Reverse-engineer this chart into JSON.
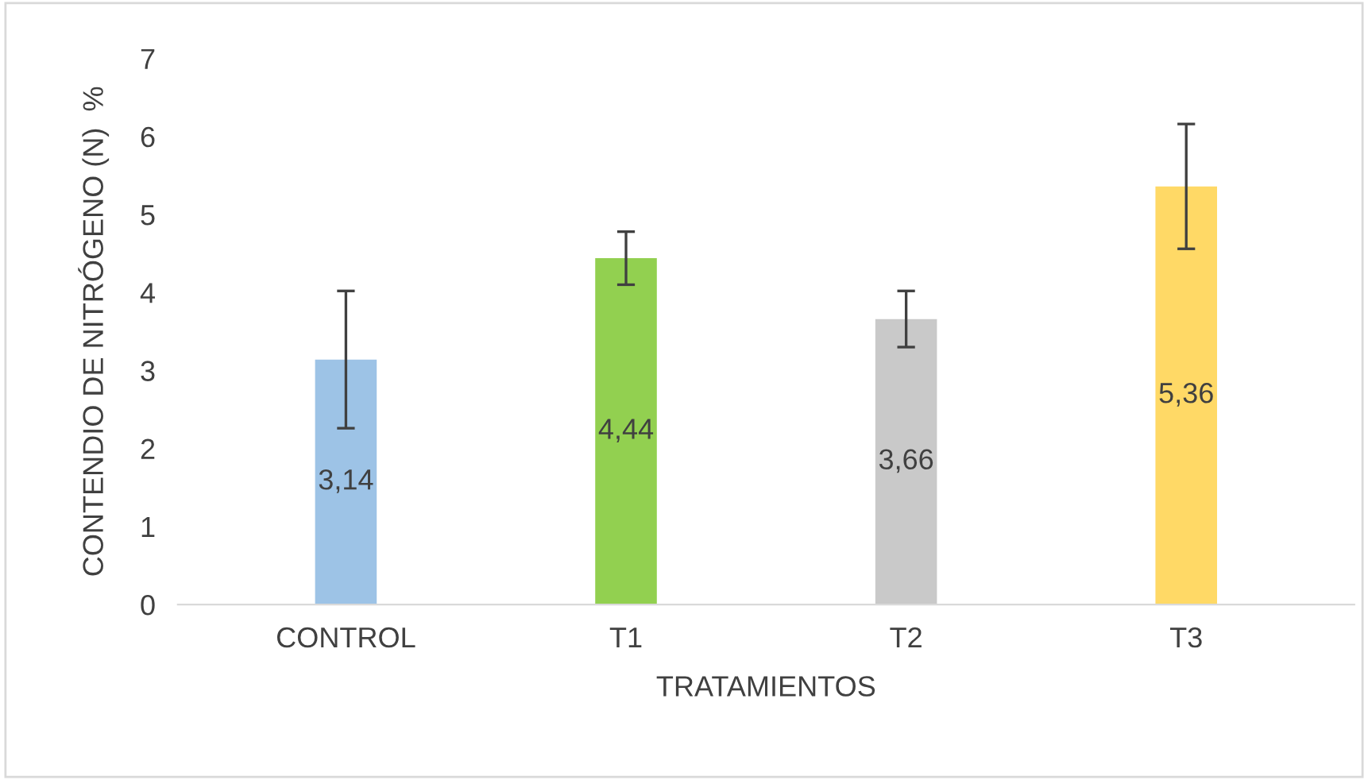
{
  "chart_data": {
    "type": "bar",
    "xlabel": "TRATAMIENTOS",
    "ylabel": "CONTENDIO DE NITRÓGENO (N)  %",
    "categories": [
      "CONTROL",
      "T1",
      "T2",
      "T3"
    ],
    "values": [
      3.14,
      4.44,
      3.66,
      5.36
    ],
    "colors": [
      "#9dc3e6",
      "#92d050",
      "#c9c9c9",
      "#ffd966"
    ],
    "errors": [
      0.88,
      0.34,
      0.36,
      0.8
    ],
    "value_labels": [
      "3,14",
      "4,44",
      "3,66",
      "5,36"
    ],
    "ylim": [
      0,
      7
    ],
    "yticks": [
      0,
      1,
      2,
      3,
      4,
      5,
      6,
      7
    ],
    "grid": false
  }
}
